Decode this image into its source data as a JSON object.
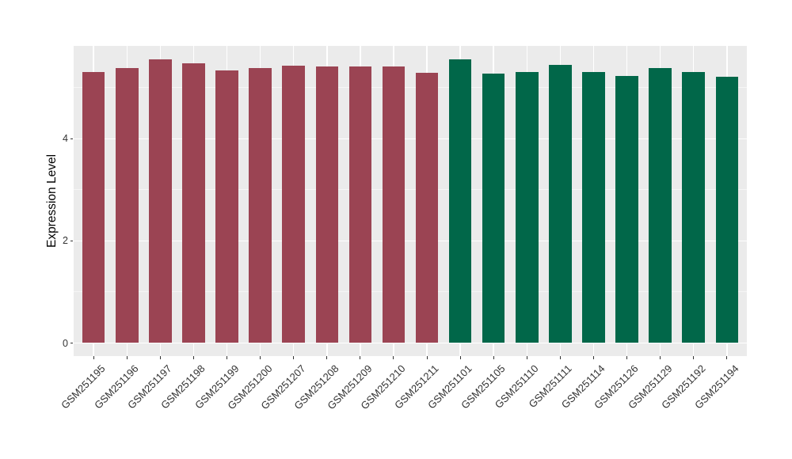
{
  "figure": {
    "background": "#FFFFFF",
    "panel_background": "#EBEBEB",
    "gridline_color": "#FFFFFF",
    "axis_text_color": "#333333"
  },
  "chart_data": {
    "type": "bar",
    "title": "",
    "xlabel": "",
    "ylabel": "Expression Level",
    "ylim": [
      0,
      5.8
    ],
    "yticks": [
      0,
      2,
      4
    ],
    "ytick_labels": [
      "0",
      "2",
      "4"
    ],
    "yticks_minor": [
      1,
      3,
      5
    ],
    "grid": "on",
    "legend": "none",
    "categories": [
      "GSM251195",
      "GSM251196",
      "GSM251197",
      "GSM251198",
      "GSM251199",
      "GSM251200",
      "GSM251207",
      "GSM251208",
      "GSM251209",
      "GSM251210",
      "GSM251211",
      "GSM251101",
      "GSM251105",
      "GSM251110",
      "GSM251111",
      "GSM251114",
      "GSM251126",
      "GSM251129",
      "GSM251192",
      "GSM251194"
    ],
    "values": [
      5.3,
      5.38,
      5.56,
      5.47,
      5.33,
      5.38,
      5.43,
      5.41,
      5.42,
      5.42,
      5.29,
      5.55,
      5.27,
      5.31,
      5.45,
      5.31,
      5.23,
      5.39,
      5.3,
      5.22
    ],
    "groups": [
      "group1",
      "group1",
      "group1",
      "group1",
      "group1",
      "group1",
      "group1",
      "group1",
      "group1",
      "group1",
      "group1",
      "group2",
      "group2",
      "group2",
      "group2",
      "group2",
      "group2",
      "group2",
      "group2",
      "group2"
    ],
    "palette": {
      "group1": "#9B4453",
      "group2": "#016749"
    }
  }
}
